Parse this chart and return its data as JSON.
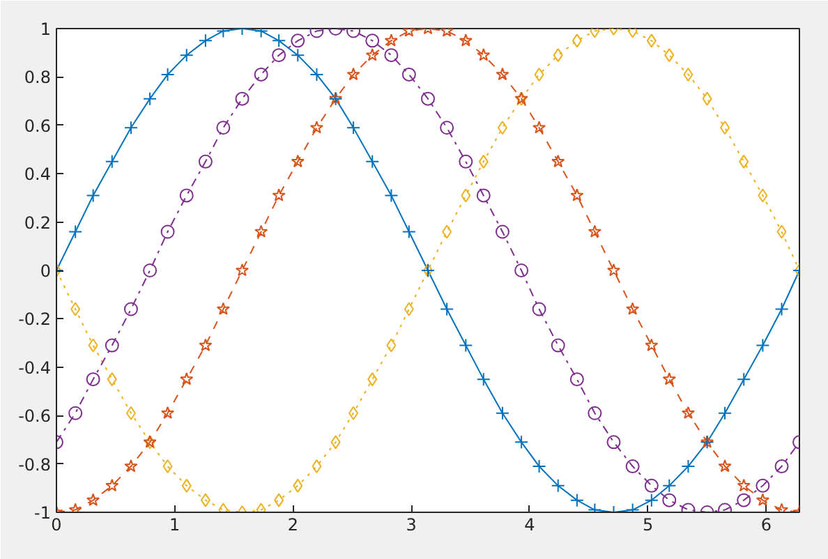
{
  "chart_data": {
    "type": "line",
    "x": [
      0,
      0.16,
      0.31,
      0.47,
      0.63,
      0.79,
      0.94,
      1.1,
      1.26,
      1.41,
      1.57,
      1.73,
      1.88,
      2.04,
      2.2,
      2.36,
      2.51,
      2.67,
      2.83,
      2.98,
      3.14,
      3.3,
      3.46,
      3.61,
      3.77,
      3.93,
      4.08,
      4.24,
      4.4,
      4.55,
      4.71,
      4.87,
      5.03,
      5.18,
      5.34,
      5.5,
      5.65,
      5.81,
      5.97,
      6.13,
      6.28
    ],
    "series": [
      {
        "color": "#0072bd",
        "marker": "cross",
        "line_style": "solid",
        "values": [
          0,
          0.16,
          0.31,
          0.45,
          0.59,
          0.71,
          0.81,
          0.89,
          0.95,
          0.99,
          1,
          0.99,
          0.95,
          0.89,
          0.81,
          0.71,
          0.59,
          0.45,
          0.31,
          0.16,
          0,
          -0.16,
          -0.31,
          -0.45,
          -0.59,
          -0.71,
          -0.81,
          -0.89,
          -0.95,
          -0.99,
          -1,
          -0.99,
          -0.95,
          -0.89,
          -0.81,
          -0.71,
          -0.59,
          -0.45,
          -0.31,
          -0.16,
          0
        ]
      },
      {
        "color": "#d95319",
        "marker": "star",
        "line_style": "dashed",
        "values": [
          -1,
          -0.99,
          -0.95,
          -0.89,
          -0.81,
          -0.71,
          -0.59,
          -0.45,
          -0.31,
          -0.16,
          0,
          0.16,
          0.31,
          0.45,
          0.59,
          0.71,
          0.81,
          0.89,
          0.95,
          0.99,
          1,
          0.99,
          0.95,
          0.89,
          0.81,
          0.71,
          0.59,
          0.45,
          0.31,
          0.16,
          0,
          -0.16,
          -0.31,
          -0.45,
          -0.59,
          -0.71,
          -0.81,
          -0.89,
          -0.95,
          -0.99,
          -1
        ]
      },
      {
        "color": "#edb120",
        "marker": "diamond",
        "line_style": "dotted",
        "values": [
          0,
          -0.16,
          -0.31,
          -0.45,
          -0.59,
          -0.71,
          -0.81,
          -0.89,
          -0.95,
          -0.99,
          -1,
          -0.99,
          -0.95,
          -0.89,
          -0.81,
          -0.71,
          -0.59,
          -0.45,
          -0.31,
          -0.16,
          0,
          0.16,
          0.31,
          0.45,
          0.59,
          0.71,
          0.81,
          0.89,
          0.95,
          0.99,
          1,
          0.99,
          0.95,
          0.89,
          0.81,
          0.71,
          0.59,
          0.45,
          0.31,
          0.16,
          0
        ]
      },
      {
        "color": "#7e2f8e",
        "marker": "circle",
        "line_style": "dashdot",
        "values": [
          -0.71,
          -0.59,
          -0.45,
          -0.31,
          -0.16,
          0,
          0.16,
          0.31,
          0.45,
          0.59,
          0.71,
          0.81,
          0.89,
          0.95,
          0.99,
          1,
          0.99,
          0.95,
          0.89,
          0.81,
          0.71,
          0.59,
          0.45,
          0.31,
          0.16,
          0,
          -0.16,
          -0.31,
          -0.45,
          -0.59,
          -0.71,
          -0.81,
          -0.89,
          -0.95,
          -0.99,
          -1,
          -0.99,
          -0.95,
          -0.89,
          -0.81,
          -0.71
        ]
      }
    ],
    "xlim": [
      0,
      6.28
    ],
    "ylim": [
      -1,
      1
    ],
    "xticks": [
      0,
      1,
      2,
      3,
      4,
      5,
      6
    ],
    "yticks": [
      {
        "value": -1,
        "label": "-1"
      },
      {
        "value": -0.8,
        "label": "-0.8"
      },
      {
        "value": -0.6,
        "label": "-0.6"
      },
      {
        "value": -0.4,
        "label": "-0.4"
      },
      {
        "value": -0.2,
        "label": "-0.2"
      },
      0,
      {
        "value": 0.2,
        "label": "0.2"
      },
      {
        "value": 0.4,
        "label": "0.4"
      },
      {
        "value": 0.6,
        "label": "0.6"
      },
      {
        "value": 0.8,
        "label": "0.8"
      },
      1
    ],
    "grid": false
  }
}
